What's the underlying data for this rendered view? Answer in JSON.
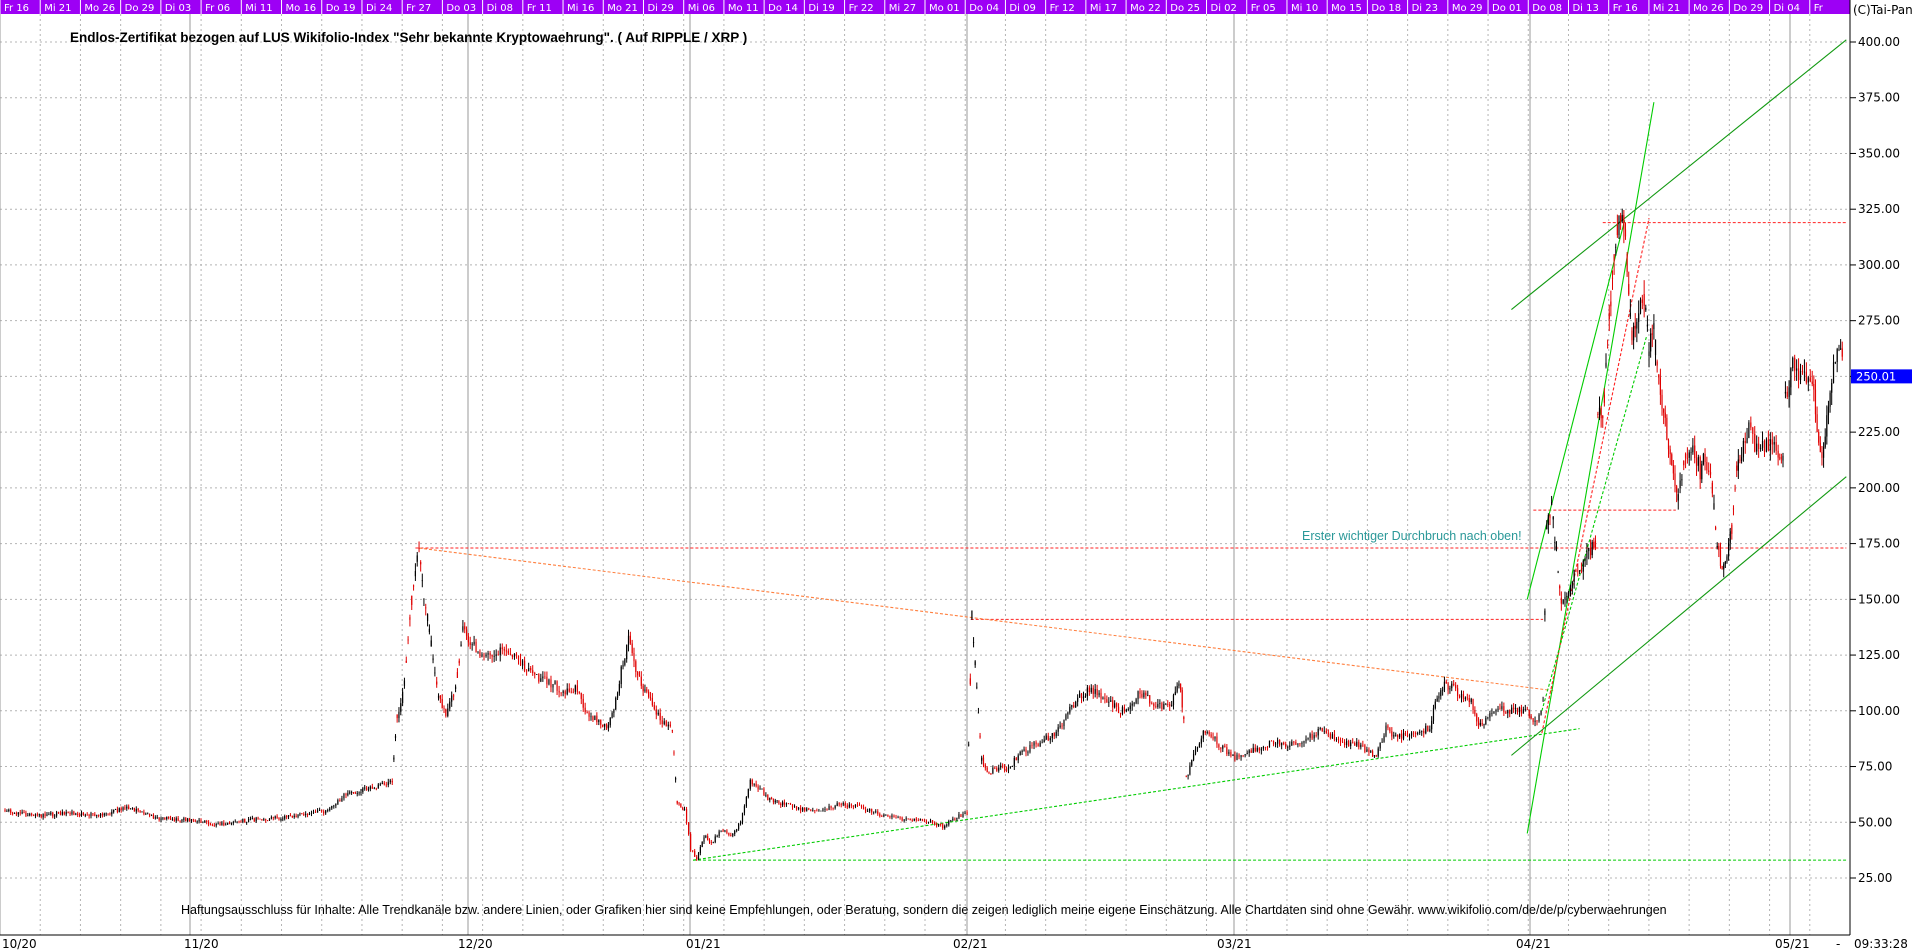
{
  "copyright": "(C)Tai-Pan",
  "disclaimer": "Haftungsausschluss für Inhalte: Alle Trendkanäle bzw. andere Linien, oder Grafiken hier sind keine Empfehlungen, oder Beratung, sondern die zeigen lediglich meine eigene Einschätzung. Alle Chartdaten sind ohne Gewähr.  www.wikifolio.com/de/de/p/cyberwaehrungen",
  "annotation": "Erster wichtiger Durchbruch nach oben!",
  "last_price": "250.01",
  "clock": "09:33:28",
  "clock_dash": "-",
  "colors": {
    "date_band": "#9d00f5",
    "candle_up": "#000000",
    "candle_down": "#e00000",
    "trend_green": "#00cc00",
    "trend_dark_green": "#119911",
    "level_red": "#ff2020",
    "trend_orange": "#ff8040",
    "annotation": "#2a9898",
    "price_tag": "#0000ff"
  },
  "chart_data": {
    "type": "candlestick",
    "title": "Endlos-Zertifikat bezogen auf LUS Wikifolio-Index \"Sehr bekannte Kryptowaehrung\". ( Auf RIPPLE / XRP )",
    "yaxis": {
      "min": 25,
      "max": 400,
      "ticks": [
        "400.00",
        "375.00",
        "350.00",
        "325.00",
        "300.00",
        "275.00",
        "250.00",
        "225.00",
        "200.00",
        "175.00",
        "150.00",
        "125.00",
        "100.00",
        "75.00",
        "50.00",
        "25.00"
      ],
      "side": "right"
    },
    "xaxis": {
      "month_labels": [
        "10/20",
        "11/20",
        "12/20",
        "01/21",
        "02/21",
        "03/21",
        "04/21",
        "05/21"
      ],
      "day_labels": [
        "Fr 16",
        "Mi 21",
        "Mo 26",
        "Do 29",
        "Di 03",
        "Fr 06",
        "Mi 11",
        "Mo 16",
        "Do 19",
        "Di 24",
        "Fr 27",
        "Do 03",
        "Di 08",
        "Fr 11",
        "Mi 16",
        "Mo 21",
        "Di 29",
        "Mi 06",
        "Mo 11",
        "Do 14",
        "Di 19",
        "Fr 22",
        "Mi 27",
        "Mo 01",
        "Do 04",
        "Di 09",
        "Fr 12",
        "Mi 17",
        "Mo 22",
        "Do 25",
        "Di 02",
        "Fr 05",
        "Mi 10",
        "Mo 15",
        "Do 18",
        "Di 23",
        "Mo 29",
        "Do 01",
        "Do 08",
        "Di 13",
        "Fr 16",
        "Mi 21",
        "Mo 26",
        "Do 29",
        "Di 04",
        "Fr"
      ]
    },
    "grid": true,
    "price_path": [
      [
        0,
        55
      ],
      [
        25,
        53
      ],
      [
        55,
        54
      ],
      [
        80,
        53
      ],
      [
        100,
        57
      ],
      [
        125,
        52
      ],
      [
        150,
        51
      ],
      [
        175,
        49
      ],
      [
        200,
        51
      ],
      [
        225,
        52
      ],
      [
        250,
        54
      ],
      [
        265,
        55
      ],
      [
        280,
        63
      ],
      [
        300,
        65
      ],
      [
        318,
        68
      ],
      [
        322,
        97
      ],
      [
        328,
        112
      ],
      [
        334,
        150
      ],
      [
        340,
        173
      ],
      [
        344,
        152
      ],
      [
        350,
        130
      ],
      [
        356,
        106
      ],
      [
        362,
        98
      ],
      [
        370,
        110
      ],
      [
        376,
        136
      ],
      [
        382,
        131
      ],
      [
        390,
        126
      ],
      [
        400,
        123
      ],
      [
        410,
        128
      ],
      [
        420,
        124
      ],
      [
        430,
        118
      ],
      [
        440,
        114
      ],
      [
        450,
        112
      ],
      [
        460,
        108
      ],
      [
        470,
        110
      ],
      [
        478,
        98
      ],
      [
        486,
        96
      ],
      [
        494,
        92
      ],
      [
        500,
        100
      ],
      [
        506,
        118
      ],
      [
        512,
        132
      ],
      [
        518,
        117
      ],
      [
        524,
        110
      ],
      [
        530,
        106
      ],
      [
        538,
        96
      ],
      [
        548,
        92
      ],
      [
        552,
        59
      ],
      [
        558,
        56
      ],
      [
        563,
        38
      ],
      [
        568,
        34
      ],
      [
        574,
        44
      ],
      [
        580,
        40
      ],
      [
        588,
        47
      ],
      [
        596,
        44
      ],
      [
        604,
        50
      ],
      [
        612,
        68
      ],
      [
        620,
        65
      ],
      [
        628,
        60
      ],
      [
        640,
        58
      ],
      [
        655,
        56
      ],
      [
        670,
        55
      ],
      [
        685,
        58
      ],
      [
        700,
        57
      ],
      [
        715,
        54
      ],
      [
        730,
        52
      ],
      [
        745,
        51
      ],
      [
        760,
        50
      ],
      [
        770,
        48
      ],
      [
        780,
        52
      ],
      [
        790,
        54
      ],
      [
        794,
        143
      ],
      [
        798,
        110
      ],
      [
        802,
        78
      ],
      [
        808,
        72
      ],
      [
        816,
        75
      ],
      [
        824,
        74
      ],
      [
        832,
        80
      ],
      [
        840,
        83
      ],
      [
        850,
        86
      ],
      [
        860,
        89
      ],
      [
        868,
        94
      ],
      [
        876,
        102
      ],
      [
        884,
        107
      ],
      [
        892,
        110
      ],
      [
        900,
        106
      ],
      [
        908,
        103
      ],
      [
        916,
        100
      ],
      [
        924,
        103
      ],
      [
        932,
        108
      ],
      [
        940,
        105
      ],
      [
        950,
        101
      ],
      [
        958,
        103
      ],
      [
        964,
        113
      ],
      [
        968,
        97
      ],
      [
        970,
        70
      ],
      [
        976,
        80
      ],
      [
        984,
        90
      ],
      [
        992,
        88
      ],
      [
        1000,
        83
      ],
      [
        1010,
        79
      ],
      [
        1020,
        81
      ],
      [
        1030,
        83
      ],
      [
        1040,
        86
      ],
      [
        1050,
        85
      ],
      [
        1060,
        86
      ],
      [
        1070,
        88
      ],
      [
        1080,
        91
      ],
      [
        1090,
        88
      ],
      [
        1100,
        86
      ],
      [
        1110,
        85
      ],
      [
        1120,
        82
      ],
      [
        1126,
        80
      ],
      [
        1134,
        92
      ],
      [
        1142,
        88
      ],
      [
        1150,
        89
      ],
      [
        1160,
        89
      ],
      [
        1170,
        93
      ],
      [
        1176,
        106
      ],
      [
        1182,
        112
      ],
      [
        1188,
        111
      ],
      [
        1196,
        106
      ],
      [
        1204,
        104
      ],
      [
        1210,
        92
      ],
      [
        1216,
        96
      ],
      [
        1226,
        102
      ],
      [
        1234,
        99
      ],
      [
        1242,
        101
      ],
      [
        1250,
        99
      ],
      [
        1258,
        95
      ],
      [
        1263,
        104
      ],
      [
        1266,
        182
      ],
      [
        1270,
        191
      ],
      [
        1274,
        171
      ],
      [
        1278,
        150
      ],
      [
        1284,
        155
      ],
      [
        1290,
        163
      ],
      [
        1296,
        166
      ],
      [
        1302,
        172
      ],
      [
        1306,
        175
      ],
      [
        1308,
        234
      ],
      [
        1312,
        231
      ],
      [
        1316,
        265
      ],
      [
        1320,
        297
      ],
      [
        1324,
        316
      ],
      [
        1328,
        320
      ],
      [
        1332,
        302
      ],
      [
        1336,
        268
      ],
      [
        1340,
        275
      ],
      [
        1346,
        285
      ],
      [
        1350,
        262
      ],
      [
        1354,
        270
      ],
      [
        1358,
        248
      ],
      [
        1362,
        234
      ],
      [
        1366,
        218
      ],
      [
        1370,
        205
      ],
      [
        1374,
        195
      ],
      [
        1380,
        215
      ],
      [
        1386,
        220
      ],
      [
        1392,
        207
      ],
      [
        1396,
        214
      ],
      [
        1402,
        200
      ],
      [
        1406,
        175
      ],
      [
        1410,
        163
      ],
      [
        1414,
        170
      ],
      [
        1418,
        182
      ],
      [
        1422,
        208
      ],
      [
        1426,
        215
      ],
      [
        1432,
        226
      ],
      [
        1440,
        216
      ],
      [
        1448,
        220
      ],
      [
        1456,
        215
      ],
      [
        1460,
        212
      ],
      [
        1462,
        240
      ],
      [
        1468,
        255
      ],
      [
        1476,
        250
      ],
      [
        1484,
        246
      ],
      [
        1488,
        228
      ],
      [
        1492,
        214
      ],
      [
        1496,
        230
      ],
      [
        1500,
        248
      ],
      [
        1506,
        264
      ],
      [
        1510,
        250
      ]
    ],
    "horizontal_levels": [
      {
        "value": 173,
        "x_start": 337,
        "x_end": 1512,
        "style": "dashed",
        "color": "red"
      },
      {
        "value": 141,
        "x_start": 793,
        "x_end": 1263,
        "style": "dashed",
        "color": "red"
      },
      {
        "value": 190,
        "x_start": 1255,
        "x_end": 1372,
        "style": "dashed",
        "color": "red"
      },
      {
        "value": 319,
        "x_start": 1312,
        "x_end": 1512,
        "style": "dashed",
        "color": "red"
      },
      {
        "value": 33,
        "x_start": 565,
        "x_end": 1512,
        "style": "dashed",
        "color": "green"
      }
    ],
    "trend_lines": [
      {
        "from": [
          340,
          173
        ],
        "to": [
          1272,
          109
        ],
        "style": "dashed",
        "color": "orange"
      },
      {
        "from": [
          565,
          33
        ],
        "to": [
          1293,
          92
        ],
        "style": "dashed",
        "color": "green"
      },
      {
        "from": [
          1250,
          45
        ],
        "to": [
          1354,
          373
        ],
        "style": "solid",
        "color": "green"
      },
      {
        "from": [
          1250,
          150
        ],
        "to": [
          1330,
          320
        ],
        "style": "solid",
        "color": "green"
      },
      {
        "from": [
          1262,
          90
        ],
        "to": [
          1350,
          321
        ],
        "style": "dashed",
        "color": "red"
      },
      {
        "from": [
          1262,
          100
        ],
        "to": [
          1348,
          268
        ],
        "style": "dashed",
        "color": "green"
      },
      {
        "from": [
          1237,
          80
        ],
        "to": [
          1512,
          205
        ],
        "style": "solid",
        "color": "dark_green"
      },
      {
        "from": [
          1237,
          280
        ],
        "to": [
          1512,
          401
        ],
        "style": "solid",
        "color": "dark_green"
      }
    ]
  }
}
